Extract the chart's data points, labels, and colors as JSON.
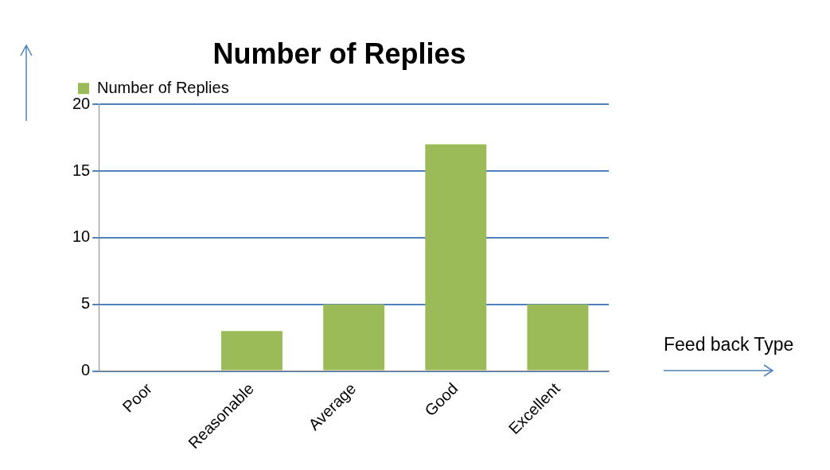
{
  "chart_data": {
    "type": "bar",
    "title": "Number of Replies",
    "xlabel": "Feed back Type",
    "categories": [
      "Poor",
      "Reasonable",
      "Average",
      "Good",
      "Excellent"
    ],
    "series": [
      {
        "name": "Number of Replies",
        "color": "#9bbb59",
        "values": [
          0,
          3,
          5,
          17,
          5
        ]
      }
    ],
    "ylim": [
      0,
      20
    ],
    "yticks": [
      0,
      5,
      10,
      15,
      20
    ],
    "grid": "y",
    "legend": "top left"
  }
}
